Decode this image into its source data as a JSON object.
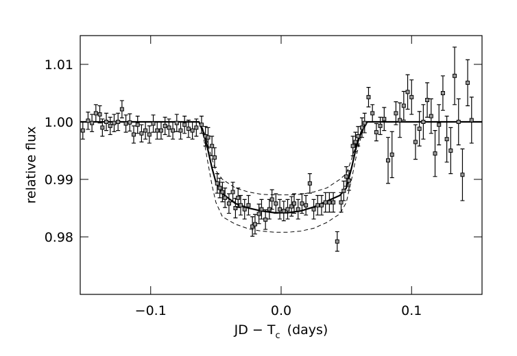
{
  "chart_data": {
    "type": "errorbar",
    "y_label": "relative flux",
    "x_label": {
      "main": "JD − T",
      "sub": "c",
      "unit": "(days)"
    },
    "xlim": [
      -0.154,
      0.154
    ],
    "xticks": [
      {
        "value": -0.1,
        "label": "−0.1"
      },
      {
        "value": 0,
        "label": "0.0"
      },
      0.1
    ],
    "ylim": [
      0.97,
      1.015
    ],
    "yticks": [
      0.98,
      0.99,
      {
        "value": 1.0,
        "label": "1.00"
      },
      1.01
    ],
    "points": {
      "color": "#999999",
      "x": [
        -0.152,
        -0.148,
        -0.145,
        -0.142,
        -0.139,
        -0.137,
        -0.134,
        -0.131,
        -0.128,
        -0.125,
        -0.122,
        -0.119,
        -0.116,
        -0.113,
        -0.11,
        -0.107,
        -0.104,
        -0.101,
        -0.098,
        -0.095,
        -0.092,
        -0.089,
        -0.086,
        -0.083,
        -0.08,
        -0.077,
        -0.074,
        -0.071,
        -0.068,
        -0.065,
        -0.061,
        -0.058,
        -0.056,
        -0.053,
        -0.051,
        -0.049,
        -0.047,
        -0.045,
        -0.043,
        -0.04,
        -0.037,
        -0.035,
        -0.033,
        -0.031,
        -0.028,
        -0.025,
        -0.022,
        -0.02,
        -0.017,
        -0.015,
        -0.012,
        -0.009,
        -0.007,
        -0.004,
        -0.001,
        0.002,
        0.005,
        0.008,
        0.01,
        0.013,
        0.016,
        0.019,
        0.022,
        0.025,
        0.028,
        0.031,
        0.034,
        0.037,
        0.04,
        0.043,
        0.046,
        0.048,
        0.05,
        0.052,
        0.055,
        0.057,
        0.059,
        0.062,
        0.064,
        0.067,
        0.07,
        0.073,
        0.076,
        0.079,
        0.082,
        0.085,
        0.088,
        0.091,
        0.094,
        0.097,
        0.1,
        0.103,
        0.106,
        0.109,
        0.112,
        0.115,
        0.118,
        0.121,
        0.124,
        0.127,
        0.13,
        0.133,
        0.136,
        0.139,
        0.143,
        0.146
      ],
      "values": [
        0.9985,
        1.0002,
        0.9998,
        1.0015,
        1.0013,
        0.999,
        1.0,
        0.9993,
        0.9998,
        1.0,
        1.0022,
        0.9997,
        0.9999,
        0.9978,
        0.9995,
        0.998,
        0.9985,
        0.9978,
        0.9997,
        0.9985,
        0.9985,
        0.9993,
        0.999,
        0.9985,
        0.9998,
        0.9985,
        0.9995,
        0.9988,
        0.9985,
        0.999,
        0.9995,
        0.9975,
        0.9973,
        0.9958,
        0.9938,
        0.9893,
        0.9885,
        0.9878,
        0.9868,
        0.9858,
        0.9878,
        0.985,
        0.9868,
        0.9855,
        0.9848,
        0.9855,
        0.9818,
        0.9822,
        0.984,
        0.9848,
        0.983,
        0.9848,
        0.9865,
        0.9858,
        0.9848,
        0.9845,
        0.9848,
        0.9853,
        0.9858,
        0.9848,
        0.9858,
        0.9855,
        0.9893,
        0.9848,
        0.9855,
        0.9855,
        0.986,
        0.986,
        0.986,
        0.9792,
        0.986,
        0.988,
        0.9905,
        0.9898,
        0.9958,
        0.9965,
        0.9975,
        0.999,
        0.9998,
        1.0043,
        1.0015,
        0.9982,
        0.9993,
        1.0005,
        0.9933,
        0.9943,
        1.0015,
        1.0003,
        1.0028,
        1.0052,
        1.0043,
        0.9965,
        0.9988,
        1.0,
        1.0038,
        1.001,
        0.9945,
        0.9995,
        1.005,
        0.997,
        0.995,
        1.008,
        1.0,
        0.9908,
        1.0068,
        1.0003
      ],
      "errors": [
        0.0015,
        0.0015,
        0.0015,
        0.0015,
        0.0015,
        0.0015,
        0.0015,
        0.0015,
        0.0015,
        0.0015,
        0.0015,
        0.0015,
        0.0015,
        0.0015,
        0.0015,
        0.0015,
        0.0015,
        0.0015,
        0.0015,
        0.0015,
        0.0015,
        0.0015,
        0.0015,
        0.0015,
        0.0015,
        0.0015,
        0.0015,
        0.0015,
        0.0015,
        0.0015,
        0.0015,
        0.0017,
        0.0017,
        0.0017,
        0.0017,
        0.0017,
        0.0017,
        0.0017,
        0.0017,
        0.0017,
        0.0017,
        0.0017,
        0.0017,
        0.0017,
        0.0017,
        0.0017,
        0.0017,
        0.0017,
        0.0017,
        0.0017,
        0.0017,
        0.0017,
        0.0017,
        0.0017,
        0.0017,
        0.0017,
        0.0017,
        0.0017,
        0.0017,
        0.0017,
        0.0017,
        0.0017,
        0.0017,
        0.0017,
        0.0017,
        0.0017,
        0.0017,
        0.0017,
        0.0017,
        0.0017,
        0.0017,
        0.0017,
        0.0017,
        0.0017,
        0.0017,
        0.0017,
        0.0017,
        0.0017,
        0.0017,
        0.0017,
        0.0015,
        0.0015,
        0.0015,
        0.002,
        0.004,
        0.004,
        0.002,
        0.003,
        0.0025,
        0.003,
        0.003,
        0.003,
        0.003,
        0.003,
        0.003,
        0.003,
        0.004,
        0.0035,
        0.003,
        0.004,
        0.004,
        0.005,
        0.004,
        0.0045,
        0.004,
        0.004
      ]
    },
    "curves": [
      {
        "style": "solid",
        "color": "#000000",
        "x": [
          -0.154,
          -0.063,
          -0.06,
          -0.057,
          -0.053,
          -0.05,
          -0.045,
          -0.035,
          -0.025,
          -0.015,
          -0.005,
          0.005,
          0.015,
          0.025,
          0.035,
          0.045,
          0.05,
          0.054,
          0.058,
          0.062,
          0.066,
          0.154
        ],
        "values": [
          1.0,
          1.0,
          0.9985,
          0.996,
          0.992,
          0.9895,
          0.9875,
          0.9858,
          0.985,
          0.9845,
          0.9842,
          0.9842,
          0.9845,
          0.9852,
          0.9862,
          0.9872,
          0.9885,
          0.992,
          0.996,
          0.9985,
          1.0,
          1.0
        ]
      },
      {
        "style": "dashed",
        "color": "#000000",
        "x": [
          -0.154,
          -0.063,
          -0.06,
          -0.057,
          -0.053,
          -0.05,
          -0.045,
          -0.035,
          -0.025,
          -0.015,
          -0.005,
          0.005,
          0.015,
          0.025,
          0.035,
          0.045,
          0.05,
          0.054,
          0.058,
          0.062,
          0.066,
          0.154
        ],
        "values": [
          1.0,
          1.0,
          0.9988,
          0.9968,
          0.9935,
          0.9915,
          0.99,
          0.9885,
          0.9878,
          0.9874,
          0.9873,
          0.9873,
          0.9874,
          0.9878,
          0.9885,
          0.99,
          0.991,
          0.9935,
          0.9965,
          0.9988,
          1.0,
          1.0
        ]
      },
      {
        "style": "dashed",
        "color": "#000000",
        "x": [
          -0.154,
          -0.063,
          -0.06,
          -0.057,
          -0.053,
          -0.05,
          -0.045,
          -0.035,
          -0.025,
          -0.015,
          -0.005,
          0.005,
          0.015,
          0.025,
          0.035,
          0.045,
          0.05,
          0.054,
          0.058,
          0.062,
          0.066,
          0.154
        ],
        "values": [
          1.0,
          1.0,
          0.998,
          0.994,
          0.989,
          0.986,
          0.9835,
          0.9822,
          0.9814,
          0.981,
          0.9808,
          0.9808,
          0.981,
          0.9815,
          0.9825,
          0.984,
          0.986,
          0.99,
          0.9945,
          0.998,
          1.0,
          1.0
        ]
      }
    ]
  }
}
